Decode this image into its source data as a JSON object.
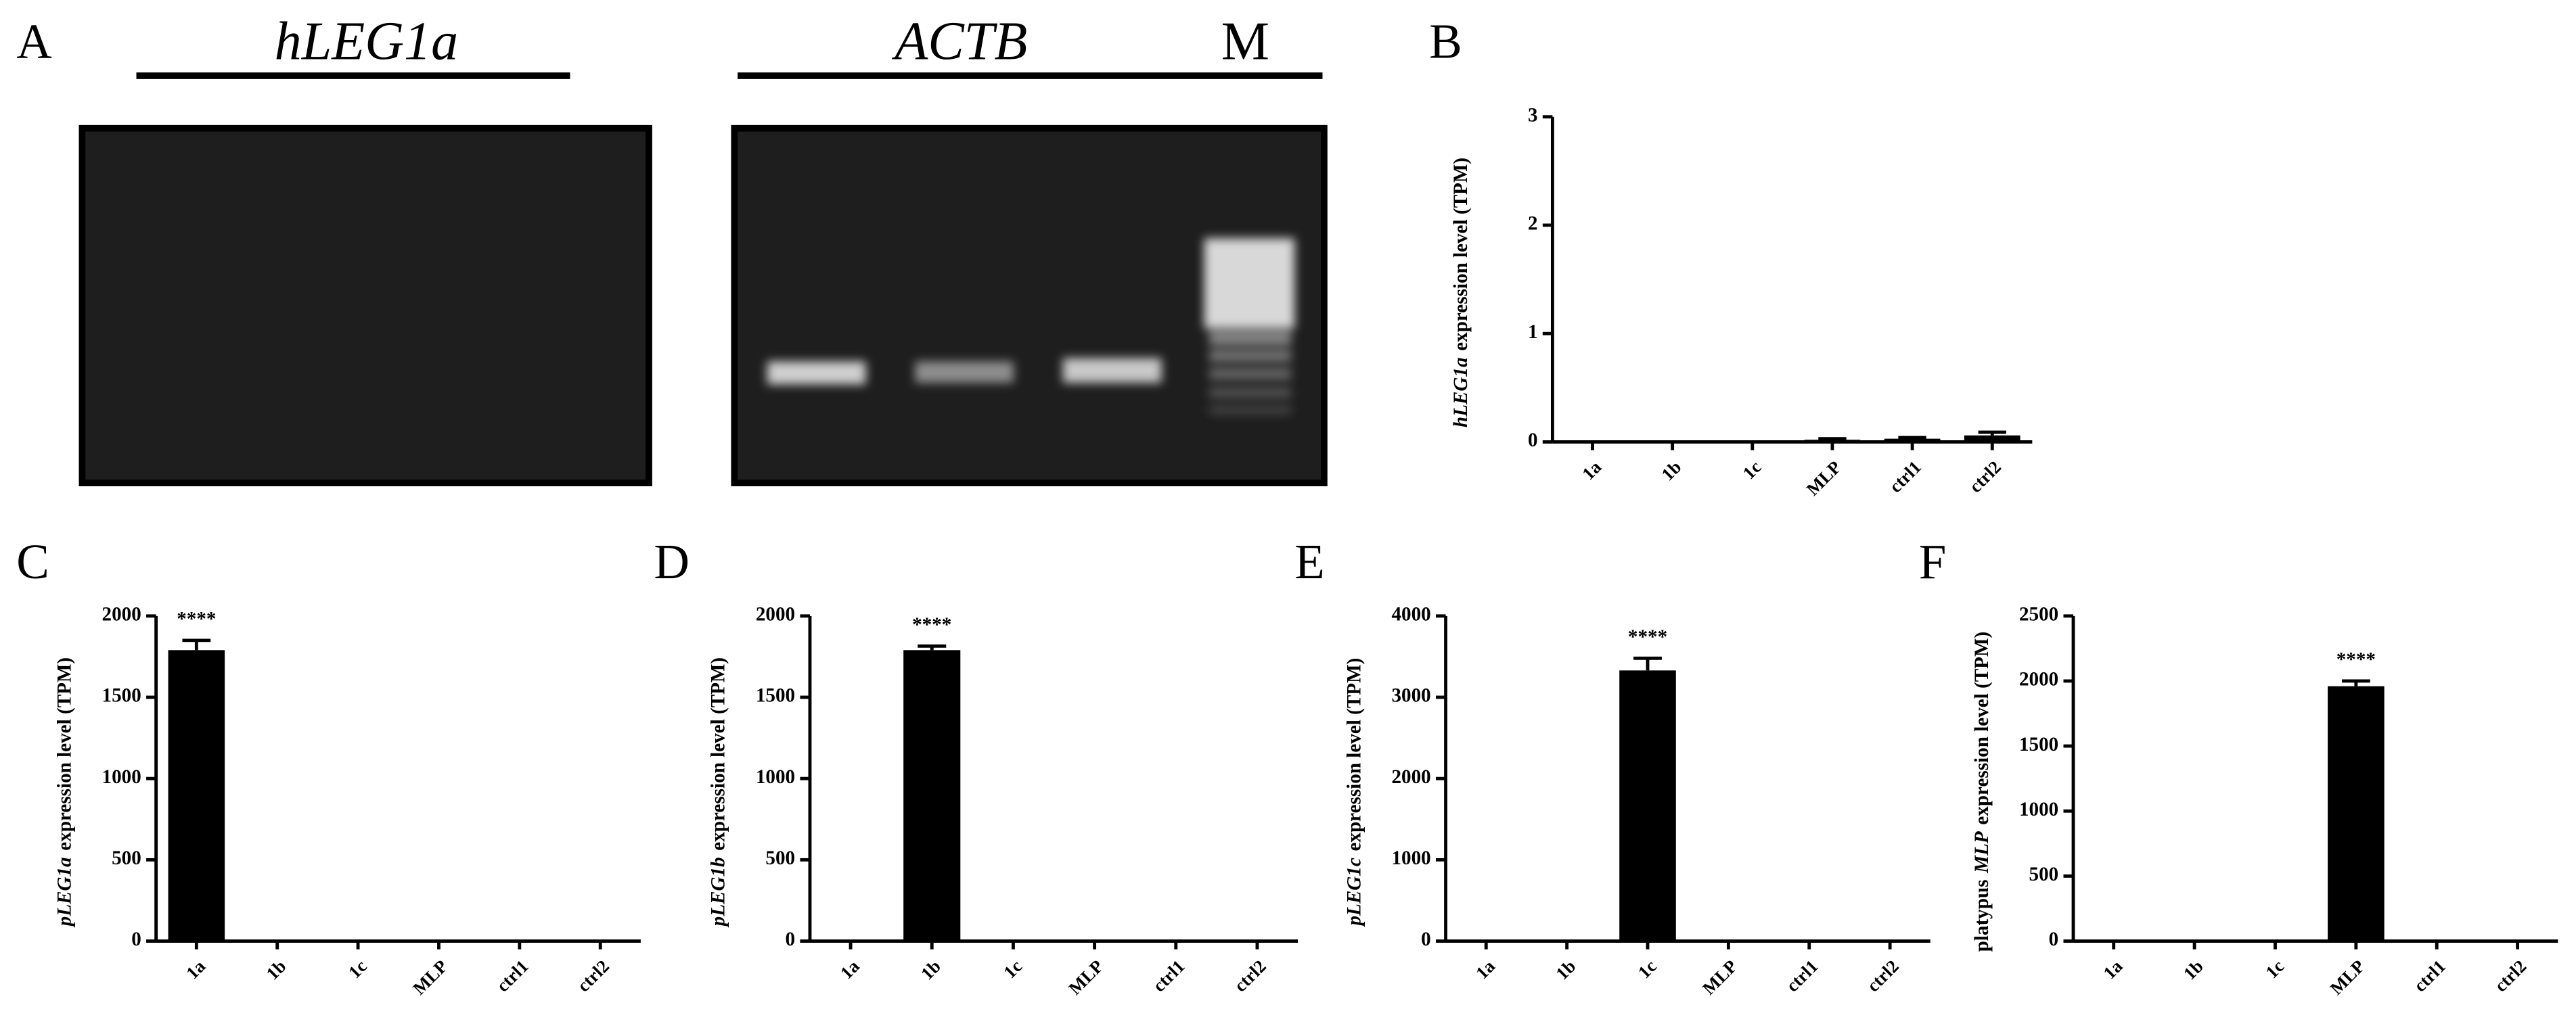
{
  "gel": {
    "label": "A",
    "lanes_title": "hLEG1a",
    "control_title": "ACTB",
    "marker": "M"
  },
  "chart_data": [
    {
      "type": "bar",
      "label": "B",
      "ylabel": [
        {
          "text": "hLEG1a",
          "italic": true
        },
        {
          "text": "expression level (TPM)",
          "italic": false
        }
      ],
      "categories": [
        "1a",
        "1b",
        "1c",
        "MLP",
        "ctrl1",
        "ctrl2"
      ],
      "values": [
        0,
        0,
        0,
        0.02,
        0.03,
        0.06
      ],
      "errors": [
        0,
        0,
        0,
        0.01,
        0.01,
        0.03
      ],
      "color": "#000000",
      "ylim": [
        0,
        3
      ],
      "yticks": [
        0,
        1,
        2,
        3
      ],
      "annotations": []
    },
    {
      "type": "bar",
      "label": "C",
      "ylabel": [
        {
          "text": "pLEG1a",
          "italic": true
        },
        {
          "text": "expression level (TPM)",
          "italic": false
        }
      ],
      "categories": [
        "1a",
        "1b",
        "1c",
        "MLP",
        "ctrl1",
        "ctrl2"
      ],
      "values": [
        1790,
        0,
        0,
        0,
        0,
        0
      ],
      "errors": [
        60,
        0,
        0,
        0,
        0,
        0
      ],
      "color": "#000000",
      "ylim": [
        0,
        2000
      ],
      "yticks": [
        0,
        500,
        1000,
        1500,
        2000
      ],
      "annotations": [
        {
          "text": "****",
          "category": "1a"
        }
      ]
    },
    {
      "type": "bar",
      "label": "D",
      "ylabel": [
        {
          "text": "pLEG1b",
          "italic": true
        },
        {
          "text": "expression level (TPM)",
          "italic": false
        }
      ],
      "categories": [
        "1a",
        "1b",
        "1c",
        "MLP",
        "ctrl1",
        "ctrl2"
      ],
      "values": [
        0,
        1790,
        0,
        0,
        0,
        0
      ],
      "errors": [
        0,
        25,
        0,
        0,
        0,
        0
      ],
      "color": "#000000",
      "ylim": [
        0,
        2000
      ],
      "yticks": [
        0,
        500,
        1000,
        1500,
        2000
      ],
      "annotations": [
        {
          "text": "****",
          "category": "1b"
        }
      ]
    },
    {
      "type": "bar",
      "label": "E",
      "ylabel": [
        {
          "text": "pLEG1c",
          "italic": true
        },
        {
          "text": "expression level (TPM)",
          "italic": false
        }
      ],
      "categories": [
        "1a",
        "1b",
        "1c",
        "MLP",
        "ctrl1",
        "ctrl2"
      ],
      "values": [
        0,
        0,
        3330,
        0,
        0,
        0
      ],
      "errors": [
        0,
        0,
        150,
        0,
        0,
        0
      ],
      "color": "#000000",
      "ylim": [
        0,
        4000
      ],
      "yticks": [
        0,
        1000,
        2000,
        3000,
        4000
      ],
      "annotations": [
        {
          "text": "****",
          "category": "1c"
        }
      ]
    },
    {
      "type": "bar",
      "label": "F",
      "ylabel": [
        {
          "text": "platypus",
          "italic": false
        },
        {
          "text": "MLP",
          "italic": true
        },
        {
          "text": "expression level (TPM)",
          "italic": false
        }
      ],
      "categories": [
        "1a",
        "1b",
        "1c",
        "MLP",
        "ctrl1",
        "ctrl2"
      ],
      "values": [
        0,
        0,
        0,
        1960,
        0,
        0
      ],
      "errors": [
        0,
        0,
        0,
        40,
        0,
        0
      ],
      "color": "#000000",
      "ylim": [
        0,
        2500
      ],
      "yticks": [
        0,
        500,
        1000,
        1500,
        2000,
        2500
      ],
      "annotations": [
        {
          "text": "****",
          "category": "MLP"
        }
      ]
    }
  ]
}
